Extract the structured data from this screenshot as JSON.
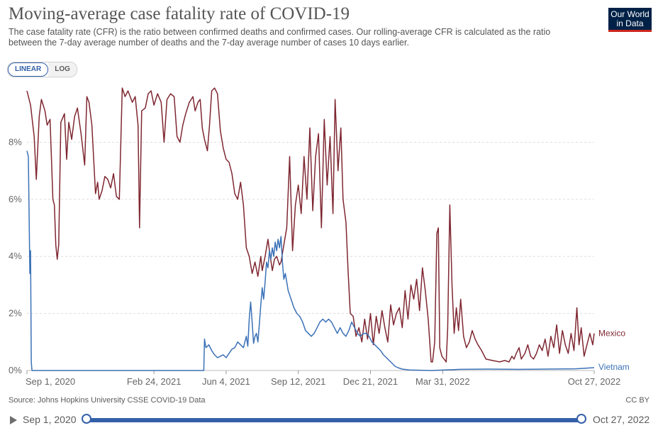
{
  "header": {
    "title": "Moving-average case fatality rate of COVID-19",
    "subtitle": "The case fatality rate (CFR) is the ratio between confirmed deaths and confirmed cases. Our rolling-average CFR is calculated as the ratio between the 7-day average number of deaths and the 7-day average number of cases 10 days earlier.",
    "logo_line1": "Our World",
    "logo_line2": "in Data"
  },
  "controls": {
    "linear_label": "LINEAR",
    "log_label": "LOG"
  },
  "footer": {
    "source": "Source: Johns Hopkins University CSSE COVID-19 Data",
    "license": "CC BY"
  },
  "timeline": {
    "start_label": "Sep 1, 2020",
    "end_label": "Oct 27, 2022"
  },
  "colors": {
    "mexico": "#7f2731",
    "vietnam": "#3b71b7",
    "grid": "#dddddd"
  },
  "chart_data": {
    "type": "line",
    "title": "Moving-average case fatality rate of COVID-19",
    "xlabel": "",
    "ylabel": "",
    "ylim": [
      0,
      10
    ],
    "xlim_days": [
      0,
      786
    ],
    "y_ticks": [
      0,
      2,
      4,
      6,
      8
    ],
    "y_tick_labels": [
      "0%",
      "2%",
      "4%",
      "6%",
      "8%"
    ],
    "x_tick_days": [
      0,
      176,
      276,
      376,
      476,
      576,
      786
    ],
    "x_tick_labels": [
      "Sep 1, 2020",
      "Feb 24, 2021",
      "Jun 4, 2021",
      "Sep 12, 2021",
      "Dec 21, 2021",
      "Mar 31, 2022",
      "Oct 27, 2022"
    ],
    "legend_placement": "right end labels",
    "grid": true,
    "series": [
      {
        "name": "Mexico",
        "points": [
          [
            0,
            9.8
          ],
          [
            5,
            9.3
          ],
          [
            10,
            8.2
          ],
          [
            13,
            6.7
          ],
          [
            17,
            8.9
          ],
          [
            20,
            9.5
          ],
          [
            25,
            9.1
          ],
          [
            28,
            8.6
          ],
          [
            32,
            8.8
          ],
          [
            36,
            6.0
          ],
          [
            38,
            5.8
          ],
          [
            40,
            4.4
          ],
          [
            42,
            3.9
          ],
          [
            44,
            4.4
          ],
          [
            47,
            8.7
          ],
          [
            52,
            9.0
          ],
          [
            55,
            7.4
          ],
          [
            58,
            8.7
          ],
          [
            62,
            8.1
          ],
          [
            66,
            8.9
          ],
          [
            70,
            9.2
          ],
          [
            75,
            8.3
          ],
          [
            80,
            7.2
          ],
          [
            83,
            9.6
          ],
          [
            86,
            9.4
          ],
          [
            90,
            8.6
          ],
          [
            95,
            6.2
          ],
          [
            98,
            6.6
          ],
          [
            100,
            6.0
          ],
          [
            104,
            6.3
          ],
          [
            108,
            6.8
          ],
          [
            112,
            6.7
          ],
          [
            116,
            6.4
          ],
          [
            120,
            6.9
          ],
          [
            124,
            6.1
          ],
          [
            128,
            6.0
          ],
          [
            132,
            9.9
          ],
          [
            136,
            9.6
          ],
          [
            140,
            9.8
          ],
          [
            146,
            9.4
          ],
          [
            150,
            9.6
          ],
          [
            154,
            8.6
          ],
          [
            156,
            5.0
          ],
          [
            159,
            9.1
          ],
          [
            164,
            9.2
          ],
          [
            168,
            9.7
          ],
          [
            172,
            9.8
          ],
          [
            176,
            9.3
          ],
          [
            181,
            9.7
          ],
          [
            186,
            9.4
          ],
          [
            190,
            8.0
          ],
          [
            194,
            9.5
          ],
          [
            199,
            9.7
          ],
          [
            204,
            9.6
          ],
          [
            208,
            8.2
          ],
          [
            212,
            8.0
          ],
          [
            216,
            8.6
          ],
          [
            220,
            9.0
          ],
          [
            225,
            9.4
          ],
          [
            230,
            9.6
          ],
          [
            233,
            9.1
          ],
          [
            237,
            9.4
          ],
          [
            240,
            9.5
          ],
          [
            243,
            8.5
          ],
          [
            246,
            8.1
          ],
          [
            250,
            7.7
          ],
          [
            253,
            8.6
          ],
          [
            256,
            9.8
          ],
          [
            260,
            9.9
          ],
          [
            264,
            9.7
          ],
          [
            268,
            8.4
          ],
          [
            272,
            7.8
          ],
          [
            276,
            7.4
          ],
          [
            280,
            7.3
          ],
          [
            284,
            6.9
          ],
          [
            288,
            6.2
          ],
          [
            292,
            6.0
          ],
          [
            296,
            6.6
          ],
          [
            300,
            5.8
          ],
          [
            304,
            4.3
          ],
          [
            308,
            4.0
          ],
          [
            312,
            3.4
          ],
          [
            316,
            3.8
          ],
          [
            320,
            3.3
          ],
          [
            324,
            4.0
          ],
          [
            326,
            3.5
          ],
          [
            330,
            4.0
          ],
          [
            334,
            4.6
          ],
          [
            336,
            4.2
          ],
          [
            340,
            3.5
          ],
          [
            343,
            3.9
          ],
          [
            346,
            4.0
          ],
          [
            350,
            3.7
          ],
          [
            352,
            3.8
          ],
          [
            356,
            4.4
          ],
          [
            360,
            5.0
          ],
          [
            364,
            7.5
          ],
          [
            368,
            4.2
          ],
          [
            372,
            5.8
          ],
          [
            376,
            6.5
          ],
          [
            380,
            5.5
          ],
          [
            384,
            7.5
          ],
          [
            388,
            6.0
          ],
          [
            392,
            8.5
          ],
          [
            396,
            5.6
          ],
          [
            400,
            7.5
          ],
          [
            404,
            8.3
          ],
          [
            408,
            5.0
          ],
          [
            412,
            8.8
          ],
          [
            416,
            6.5
          ],
          [
            420,
            8.2
          ],
          [
            424,
            5.5
          ],
          [
            427,
            9.5
          ],
          [
            431,
            7.0
          ],
          [
            435,
            8.5
          ],
          [
            438,
            6.0
          ],
          [
            442,
            5.2
          ],
          [
            445,
            3.5
          ],
          [
            448,
            2.0
          ],
          [
            452,
            1.9
          ],
          [
            456,
            1.2
          ],
          [
            460,
            1.5
          ],
          [
            464,
            1.0
          ],
          [
            468,
            1.8
          ],
          [
            472,
            1.1
          ],
          [
            476,
            2.0
          ],
          [
            480,
            0.9
          ],
          [
            484,
            1.9
          ],
          [
            488,
            1.3
          ],
          [
            492,
            2.1
          ],
          [
            496,
            1.5
          ],
          [
            500,
            1.0
          ],
          [
            504,
            2.3
          ],
          [
            508,
            1.6
          ],
          [
            512,
            2.0
          ],
          [
            516,
            2.2
          ],
          [
            520,
            1.5
          ],
          [
            524,
            2.8
          ],
          [
            528,
            1.8
          ],
          [
            532,
            3.0
          ],
          [
            536,
            2.5
          ],
          [
            540,
            3.2
          ],
          [
            544,
            2.1
          ],
          [
            548,
            3.6
          ],
          [
            552,
            2.8
          ],
          [
            556,
            1.8
          ],
          [
            560,
            0.3
          ],
          [
            562,
            0.3
          ],
          [
            565,
            1.0
          ],
          [
            568,
            4.8
          ],
          [
            570,
            5.0
          ],
          [
            572,
            0.8
          ],
          [
            575,
            0.5
          ],
          [
            578,
            0.4
          ],
          [
            581,
            0.3
          ],
          [
            583,
            1.5
          ],
          [
            586,
            5.8
          ],
          [
            589,
            3.0
          ],
          [
            592,
            1.3
          ],
          [
            595,
            2.2
          ],
          [
            598,
            1.4
          ],
          [
            601,
            2.5
          ],
          [
            605,
            1.2
          ],
          [
            609,
            0.8
          ],
          [
            613,
            1.0
          ],
          [
            617,
            1.4
          ],
          [
            621,
            1.1
          ],
          [
            625,
            0.9
          ],
          [
            630,
            0.7
          ],
          [
            636,
            0.4
          ],
          [
            645,
            0.35
          ],
          [
            655,
            0.3
          ],
          [
            662,
            0.35
          ],
          [
            668,
            0.3
          ],
          [
            672,
            0.5
          ],
          [
            675,
            0.4
          ],
          [
            678,
            0.6
          ],
          [
            682,
            0.8
          ],
          [
            685,
            0.4
          ],
          [
            690,
            0.6
          ],
          [
            694,
            0.9
          ],
          [
            698,
            0.5
          ],
          [
            702,
            0.4
          ],
          [
            706,
            0.6
          ],
          [
            710,
            0.9
          ],
          [
            714,
            0.7
          ],
          [
            718,
            1.1
          ],
          [
            722,
            0.5
          ],
          [
            726,
            1.2
          ],
          [
            730,
            0.8
          ],
          [
            734,
            1.6
          ],
          [
            738,
            0.6
          ],
          [
            742,
            1.4
          ],
          [
            746,
            0.9
          ],
          [
            750,
            0.6
          ],
          [
            754,
            1.3
          ],
          [
            758,
            0.7
          ],
          [
            762,
            2.2
          ],
          [
            765,
            0.9
          ],
          [
            768,
            1.5
          ],
          [
            772,
            0.5
          ],
          [
            776,
            0.9
          ],
          [
            780,
            1.3
          ],
          [
            784,
            0.9
          ],
          [
            786,
            1.3
          ]
        ]
      },
      {
        "name": "Vietnam",
        "points": [
          [
            0,
            7.7
          ],
          [
            2,
            7.5
          ],
          [
            4,
            3.4
          ],
          [
            5,
            4.2
          ],
          [
            6,
            0.3
          ],
          [
            7,
            0.0
          ],
          [
            100,
            0.0
          ],
          [
            200,
            0.0
          ],
          [
            245,
            0.0
          ],
          [
            246,
            1.1
          ],
          [
            248,
            0.8
          ],
          [
            252,
            0.9
          ],
          [
            256,
            0.7
          ],
          [
            260,
            0.55
          ],
          [
            264,
            0.45
          ],
          [
            268,
            0.5
          ],
          [
            272,
            0.55
          ],
          [
            276,
            0.45
          ],
          [
            280,
            0.6
          ],
          [
            284,
            0.75
          ],
          [
            288,
            0.8
          ],
          [
            292,
            1.0
          ],
          [
            296,
            0.9
          ],
          [
            300,
            0.8
          ],
          [
            304,
            1.2
          ],
          [
            306,
            0.85
          ],
          [
            308,
            1.8
          ],
          [
            310,
            2.4
          ],
          [
            312,
            1.7
          ],
          [
            314,
            0.95
          ],
          [
            316,
            1.2
          ],
          [
            318,
            1.3
          ],
          [
            320,
            1.0
          ],
          [
            322,
            1.6
          ],
          [
            324,
            2.3
          ],
          [
            326,
            2.9
          ],
          [
            328,
            2.5
          ],
          [
            330,
            3.1
          ],
          [
            332,
            3.8
          ],
          [
            334,
            3.6
          ],
          [
            336,
            4.2
          ],
          [
            338,
            3.9
          ],
          [
            340,
            4.3
          ],
          [
            342,
            4.0
          ],
          [
            344,
            4.5
          ],
          [
            346,
            4.2
          ],
          [
            348,
            4.6
          ],
          [
            350,
            4.3
          ],
          [
            352,
            4.7
          ],
          [
            354,
            3.8
          ],
          [
            356,
            3.2
          ],
          [
            358,
            3.4
          ],
          [
            362,
            2.8
          ],
          [
            366,
            2.5
          ],
          [
            370,
            2.2
          ],
          [
            374,
            2.0
          ],
          [
            378,
            1.9
          ],
          [
            382,
            1.7
          ],
          [
            386,
            1.4
          ],
          [
            390,
            1.3
          ],
          [
            394,
            1.2
          ],
          [
            398,
            1.3
          ],
          [
            402,
            1.5
          ],
          [
            406,
            1.7
          ],
          [
            410,
            1.8
          ],
          [
            414,
            1.7
          ],
          [
            418,
            1.8
          ],
          [
            422,
            1.7
          ],
          [
            426,
            1.5
          ],
          [
            430,
            1.3
          ],
          [
            434,
            1.5
          ],
          [
            438,
            1.3
          ],
          [
            442,
            1.2
          ],
          [
            446,
            1.4
          ],
          [
            450,
            1.7
          ],
          [
            454,
            1.5
          ],
          [
            458,
            1.3
          ],
          [
            462,
            1.2
          ],
          [
            466,
            1.3
          ],
          [
            470,
            1.3
          ],
          [
            474,
            1.2
          ],
          [
            478,
            1.0
          ],
          [
            482,
            0.9
          ],
          [
            486,
            0.8
          ],
          [
            490,
            0.7
          ],
          [
            494,
            0.55
          ],
          [
            498,
            0.45
          ],
          [
            502,
            0.35
          ],
          [
            506,
            0.25
          ],
          [
            510,
            0.15
          ],
          [
            514,
            0.1
          ],
          [
            520,
            0.05
          ],
          [
            530,
            0.02
          ],
          [
            560,
            0.0
          ],
          [
            600,
            0.04
          ],
          [
            640,
            0.05
          ],
          [
            680,
            0.04
          ],
          [
            720,
            0.05
          ],
          [
            760,
            0.06
          ],
          [
            786,
            0.1
          ]
        ]
      }
    ]
  }
}
